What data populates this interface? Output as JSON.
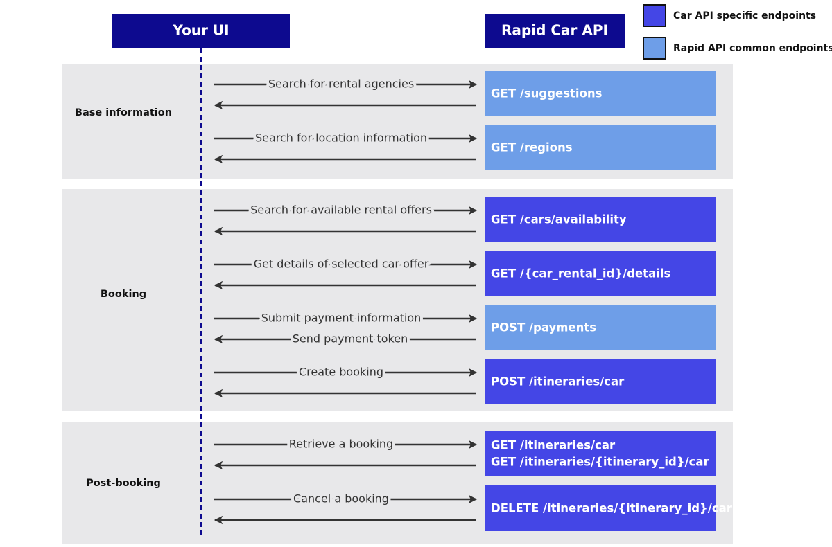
{
  "header": {
    "ui": "Your UI",
    "api": "Rapid Car API",
    "color": "#0d0a8f"
  },
  "legend": [
    {
      "label": "Car API specific endpoints",
      "color": "#4446e6"
    },
    {
      "label": "Rapid API common endpoints",
      "color": "#6e9ee8"
    }
  ],
  "sections": [
    {
      "label": "Base information",
      "rows": [
        {
          "request": "Search for rental agencies",
          "endpoint": [
            "GET /suggestions"
          ],
          "kind": 1
        },
        {
          "request": "Search for location information",
          "endpoint": [
            "GET /regions"
          ],
          "kind": 1
        }
      ]
    },
    {
      "label": "Booking",
      "rows": [
        {
          "request": "Search for available rental offers",
          "endpoint": [
            "GET /cars/availability"
          ],
          "kind": 0
        },
        {
          "request": "Get details of selected car offer",
          "endpoint": [
            "GET /{car_rental_id}/details"
          ],
          "kind": 0
        },
        {
          "request": "Submit payment information",
          "endpoint": [
            "POST /payments"
          ],
          "kind": 1,
          "response": "Send payment token"
        },
        {
          "request": "Create booking",
          "endpoint": [
            "POST /itineraries/car"
          ],
          "kind": 0
        }
      ]
    },
    {
      "label": "Post-booking",
      "rows": [
        {
          "request": "Retrieve a booking",
          "endpoint": [
            "GET /itineraries/car",
            "GET /itineraries/{itinerary_id}/car"
          ],
          "kind": 0
        },
        {
          "request": "Cancel a booking",
          "endpoint": [
            "DELETE /itineraries/{itinerary_id}/car"
          ],
          "kind": 0
        }
      ]
    }
  ]
}
